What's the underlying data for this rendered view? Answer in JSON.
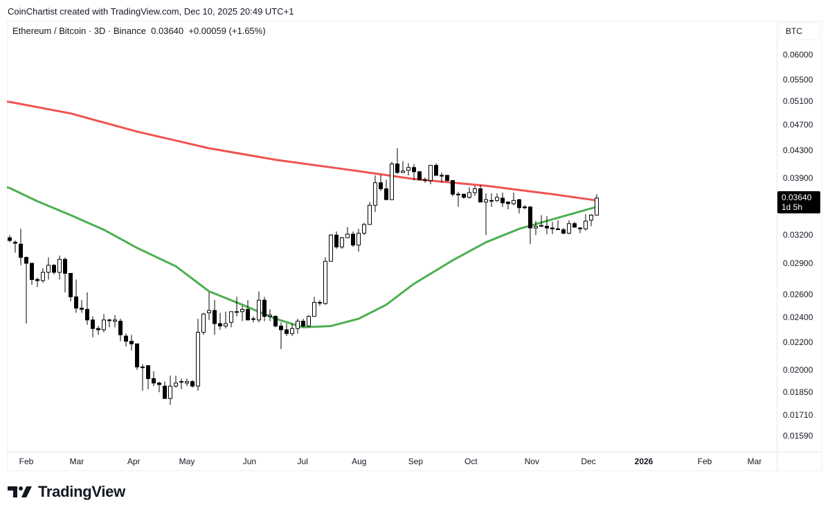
{
  "header": {
    "credit": "CoinChartist created with TradingView.com, Dec 10, 2025 20:49 UTC+1",
    "legend": "Ethereum / Bitcoin · 3D · Binance  0.03640  +0.00059 (+1.65%)"
  },
  "price_axis": {
    "currency": "BTC",
    "last_price": "0.03640",
    "countdown": "1d 5h"
  },
  "footer": {
    "logo_text": "TradingView"
  },
  "colors": {
    "ma_red": "#f05350",
    "ma_green": "#4caf50",
    "candle": "#000000",
    "up_fill": "#ffffff"
  },
  "chart_data": {
    "type": "candlestick",
    "title": "Ethereum / Bitcoin · 3D · Binance",
    "scale": "log",
    "ylim": [
      0.0152,
      0.0645
    ],
    "y_ticks": [
      "0.06000",
      "0.05500",
      "0.05100",
      "0.04700",
      "0.04300",
      "0.03900",
      "0.03200",
      "0.02900",
      "0.02600",
      "0.02400",
      "0.02200",
      "0.02000",
      "0.01850",
      "0.01710",
      "0.01590"
    ],
    "x_ticks": [
      {
        "label": "Feb",
        "index": 3
      },
      {
        "label": "Mar",
        "index": 12.1
      },
      {
        "label": "Apr",
        "index": 22.4
      },
      {
        "label": "May",
        "index": 32
      },
      {
        "label": "Jun",
        "index": 43.3
      },
      {
        "label": "Jul",
        "index": 52.9
      },
      {
        "label": "Aug",
        "index": 63.1
      },
      {
        "label": "Sep",
        "index": 73.3
      },
      {
        "label": "Oct",
        "index": 83.3
      },
      {
        "label": "Nov",
        "index": 94.3
      },
      {
        "label": "Dec",
        "index": 104.5
      },
      {
        "label": "2026",
        "index": 114.5,
        "bold": true
      },
      {
        "label": "Feb",
        "index": 125.5
      },
      {
        "label": "Mar",
        "index": 134.5
      }
    ],
    "candles_ohlc_fields": [
      "open",
      "high",
      "low",
      "close"
    ],
    "candles": [
      [
        0.0317,
        0.032,
        0.0312,
        0.0314
      ],
      [
        0.0312,
        0.0314,
        0.0301,
        0.0311
      ],
      [
        0.031,
        0.0327,
        0.0288,
        0.0296
      ],
      [
        0.0296,
        0.0297,
        0.0235,
        0.029
      ],
      [
        0.029,
        0.029,
        0.0269,
        0.0274
      ],
      [
        0.0274,
        0.0276,
        0.0267,
        0.0273
      ],
      [
        0.0273,
        0.0285,
        0.0271,
        0.0281
      ],
      [
        0.0281,
        0.0296,
        0.0274,
        0.0288
      ],
      [
        0.0288,
        0.0289,
        0.0279,
        0.0281
      ],
      [
        0.0281,
        0.0298,
        0.0274,
        0.0294
      ],
      [
        0.0294,
        0.0296,
        0.0262,
        0.028
      ],
      [
        0.028,
        0.028,
        0.0254,
        0.0258
      ],
      [
        0.0258,
        0.0274,
        0.0244,
        0.0248
      ],
      [
        0.0248,
        0.0255,
        0.0244,
        0.0247
      ],
      [
        0.0247,
        0.0262,
        0.0234,
        0.0238
      ],
      [
        0.0238,
        0.0241,
        0.0224,
        0.0231
      ],
      [
        0.0231,
        0.0233,
        0.0226,
        0.023
      ],
      [
        0.023,
        0.0243,
        0.0228,
        0.0238
      ],
      [
        0.0238,
        0.0239,
        0.0232,
        0.0238
      ],
      [
        0.0237,
        0.0242,
        0.0232,
        0.0238
      ],
      [
        0.0237,
        0.0239,
        0.0221,
        0.0226
      ],
      [
        0.0225,
        0.0227,
        0.0217,
        0.0221
      ],
      [
        0.0221,
        0.0226,
        0.0214,
        0.0219
      ],
      [
        0.0219,
        0.0219,
        0.02,
        0.0202
      ],
      [
        0.0202,
        0.0204,
        0.0186,
        0.0202
      ],
      [
        0.0203,
        0.0203,
        0.0187,
        0.0194
      ],
      [
        0.0194,
        0.0199,
        0.0189,
        0.0191
      ],
      [
        0.0191,
        0.0192,
        0.0185,
        0.019
      ],
      [
        0.0189,
        0.0192,
        0.0181,
        0.0181
      ],
      [
        0.0181,
        0.0196,
        0.0177,
        0.0189
      ],
      [
        0.0189,
        0.0196,
        0.0188,
        0.0191
      ],
      [
        0.0192,
        0.0194,
        0.0187,
        0.0192
      ],
      [
        0.0191,
        0.0194,
        0.0189,
        0.0192
      ],
      [
        0.0192,
        0.0193,
        0.0188,
        0.0189
      ],
      [
        0.0189,
        0.0239,
        0.0186,
        0.0228
      ],
      [
        0.0228,
        0.0244,
        0.0226,
        0.0243
      ],
      [
        0.0244,
        0.0262,
        0.0238,
        0.0246
      ],
      [
        0.0246,
        0.0255,
        0.0226,
        0.0235
      ],
      [
        0.0235,
        0.0244,
        0.023,
        0.0233
      ],
      [
        0.0233,
        0.0245,
        0.0231,
        0.0235
      ],
      [
        0.0236,
        0.0245,
        0.0232,
        0.0245
      ],
      [
        0.0245,
        0.0258,
        0.0241,
        0.0245
      ],
      [
        0.0245,
        0.025,
        0.0237,
        0.0247
      ],
      [
        0.0247,
        0.0255,
        0.0238,
        0.0238
      ],
      [
        0.0239,
        0.0241,
        0.0236,
        0.0239
      ],
      [
        0.0238,
        0.0263,
        0.0236,
        0.0255
      ],
      [
        0.0255,
        0.0258,
        0.0237,
        0.0241
      ],
      [
        0.0241,
        0.0247,
        0.0237,
        0.0242
      ],
      [
        0.0241,
        0.0242,
        0.0232,
        0.0233
      ],
      [
        0.0233,
        0.0236,
        0.0215,
        0.023
      ],
      [
        0.023,
        0.0235,
        0.0225,
        0.0227
      ],
      [
        0.0227,
        0.0235,
        0.0225,
        0.0231
      ],
      [
        0.0231,
        0.0239,
        0.0227,
        0.0237
      ],
      [
        0.0237,
        0.0239,
        0.0232,
        0.0233
      ],
      [
        0.0233,
        0.0242,
        0.0232,
        0.0241
      ],
      [
        0.0241,
        0.0258,
        0.0241,
        0.0253
      ],
      [
        0.0253,
        0.0255,
        0.025,
        0.0253
      ],
      [
        0.0252,
        0.0296,
        0.0251,
        0.0292
      ],
      [
        0.0292,
        0.0321,
        0.0292,
        0.032
      ],
      [
        0.032,
        0.0324,
        0.0305,
        0.0307
      ],
      [
        0.0307,
        0.0318,
        0.0305,
        0.0317
      ],
      [
        0.0317,
        0.0329,
        0.0317,
        0.0321
      ],
      [
        0.0321,
        0.0324,
        0.0307,
        0.0309
      ],
      [
        0.0309,
        0.0327,
        0.0302,
        0.0322
      ],
      [
        0.0322,
        0.0334,
        0.032,
        0.0332
      ],
      [
        0.0332,
        0.0359,
        0.0332,
        0.0355
      ],
      [
        0.0355,
        0.0394,
        0.0347,
        0.0384
      ],
      [
        0.0384,
        0.0395,
        0.0373,
        0.0376
      ],
      [
        0.0376,
        0.0388,
        0.0362,
        0.0362
      ],
      [
        0.0362,
        0.0413,
        0.0362,
        0.041
      ],
      [
        0.041,
        0.0433,
        0.0396,
        0.0398
      ],
      [
        0.0398,
        0.0414,
        0.0398,
        0.04
      ],
      [
        0.0401,
        0.0411,
        0.0394,
        0.0405
      ],
      [
        0.0405,
        0.041,
        0.0387,
        0.0399
      ],
      [
        0.0399,
        0.04,
        0.0387,
        0.0388
      ],
      [
        0.0388,
        0.0391,
        0.0384,
        0.0388
      ],
      [
        0.0387,
        0.0408,
        0.0382,
        0.0408
      ],
      [
        0.0408,
        0.0411,
        0.0394,
        0.0394
      ],
      [
        0.0394,
        0.0398,
        0.0384,
        0.0394
      ],
      [
        0.0394,
        0.0395,
        0.0386,
        0.0387
      ],
      [
        0.0387,
        0.0387,
        0.0366,
        0.0369
      ],
      [
        0.0369,
        0.0372,
        0.0353,
        0.0369
      ],
      [
        0.0369,
        0.0369,
        0.0363,
        0.0365
      ],
      [
        0.0365,
        0.0378,
        0.0363,
        0.0371
      ],
      [
        0.0371,
        0.038,
        0.0367,
        0.0376
      ],
      [
        0.0376,
        0.0381,
        0.0359,
        0.0359
      ],
      [
        0.0359,
        0.037,
        0.032,
        0.0362
      ],
      [
        0.0361,
        0.037,
        0.0353,
        0.0361
      ],
      [
        0.0361,
        0.037,
        0.0359,
        0.0365
      ],
      [
        0.0364,
        0.0371,
        0.0353,
        0.0358
      ],
      [
        0.0359,
        0.036,
        0.035,
        0.0357
      ],
      [
        0.0357,
        0.0371,
        0.0355,
        0.0361
      ],
      [
        0.0362,
        0.0363,
        0.0345,
        0.0352
      ],
      [
        0.0353,
        0.0355,
        0.035,
        0.0352
      ],
      [
        0.0353,
        0.0353,
        0.031,
        0.0328
      ],
      [
        0.0328,
        0.0336,
        0.032,
        0.033
      ],
      [
        0.033,
        0.0343,
        0.0329,
        0.0331
      ],
      [
        0.033,
        0.0342,
        0.0321,
        0.0328
      ],
      [
        0.0328,
        0.0335,
        0.0321,
        0.0327
      ],
      [
        0.0327,
        0.0337,
        0.0326,
        0.0326
      ],
      [
        0.0326,
        0.0328,
        0.0321,
        0.0322
      ],
      [
        0.0322,
        0.0337,
        0.0321,
        0.0333
      ],
      [
        0.0333,
        0.0335,
        0.0328,
        0.0329
      ],
      [
        0.0328,
        0.0329,
        0.0322,
        0.0327
      ],
      [
        0.0327,
        0.0344,
        0.0325,
        0.0336
      ],
      [
        0.0337,
        0.0344,
        0.033,
        0.0343
      ],
      [
        0.0343,
        0.0369,
        0.0343,
        0.0364
      ]
    ],
    "series": [
      {
        "name": "Moving average (red)",
        "color": "#f05350",
        "points": [
          [
            -1,
            0.051
          ],
          [
            0,
            0.0509
          ],
          [
            11,
            0.0489
          ],
          [
            23,
            0.0459
          ],
          [
            36,
            0.0433
          ],
          [
            48,
            0.0416
          ],
          [
            61,
            0.0402
          ],
          [
            73,
            0.0389
          ],
          [
            86,
            0.038
          ],
          [
            98,
            0.0369
          ],
          [
            106,
            0.0361
          ]
        ]
      },
      {
        "name": "Moving average (green)",
        "color": "#4caf50",
        "points": [
          [
            -1,
            0.0379
          ],
          [
            0,
            0.0377
          ],
          [
            5,
            0.036
          ],
          [
            11,
            0.0343
          ],
          [
            17,
            0.0326
          ],
          [
            23,
            0.0306
          ],
          [
            30,
            0.0287
          ],
          [
            36,
            0.0263
          ],
          [
            42,
            0.0251
          ],
          [
            48,
            0.0239
          ],
          [
            53,
            0.0232
          ],
          [
            58,
            0.0233
          ],
          [
            63,
            0.0239
          ],
          [
            68,
            0.0251
          ],
          [
            73,
            0.027
          ],
          [
            80,
            0.0293
          ],
          [
            86,
            0.0312
          ],
          [
            92,
            0.0327
          ],
          [
            98,
            0.0338
          ],
          [
            106,
            0.0353
          ]
        ]
      }
    ]
  }
}
